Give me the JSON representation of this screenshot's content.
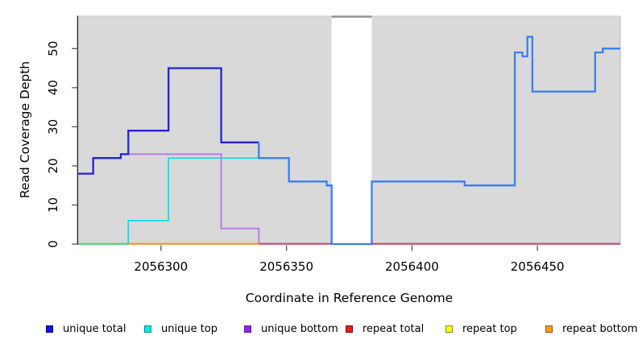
{
  "axes": {
    "x_title": "Coordinate in Reference Genome",
    "y_title": "Read Coverage Depth"
  },
  "legend": {
    "items": [
      {
        "label": "unique total",
        "color": "#1212ee",
        "border": "#00008b"
      },
      {
        "label": "unique top",
        "color": "#00eeee",
        "border": "#008b8b"
      },
      {
        "label": "unique bottom",
        "color": "#a020f0",
        "border": "#551a8b"
      },
      {
        "label": "repeat total",
        "color": "#ee1c1c",
        "border": "#8b0000"
      },
      {
        "label": "repeat top",
        "color": "#ffff00",
        "border": "#8b8b00"
      },
      {
        "label": "repeat bottom",
        "color": "#ffa012",
        "border": "#8b5a00"
      }
    ]
  },
  "chart_data": {
    "type": "step",
    "title": "",
    "xlabel": "Coordinate in Reference Genome",
    "ylabel": "Read Coverage Depth",
    "xlim": [
      2056267,
      2056483
    ],
    "ylim": [
      0,
      58.3
    ],
    "x_ticks": [
      2056300,
      2056350,
      2056400,
      2056450
    ],
    "y_ticks": [
      0,
      10,
      20,
      30,
      40,
      50
    ],
    "grid": false,
    "panel_bg": "#d9d9d9",
    "gap_region": {
      "start": 2056368,
      "end": 2056384,
      "fill": "#ffffff",
      "cap_color": "#96969a"
    },
    "series": [
      {
        "name": "unique total",
        "color": "#2424d6",
        "color_blend": "#3a7ef5",
        "steps": [
          [
            2056267,
            18
          ],
          [
            2056273,
            22
          ],
          [
            2056284,
            23
          ],
          [
            2056287,
            29
          ],
          [
            2056303,
            45
          ],
          [
            2056324,
            26
          ],
          [
            2056339,
            22
          ],
          [
            2056351,
            16
          ],
          [
            2056366,
            15
          ],
          [
            2056368,
            0
          ],
          [
            2056384,
            16
          ],
          [
            2056421,
            15
          ],
          [
            2056441,
            49
          ],
          [
            2056444,
            48
          ],
          [
            2056446,
            53
          ],
          [
            2056448,
            39
          ],
          [
            2056473,
            49
          ],
          [
            2056476,
            50
          ]
        ]
      },
      {
        "name": "unique top",
        "color": "#00e1ec",
        "steps": [
          [
            2056267,
            0
          ],
          [
            2056287,
            6
          ],
          [
            2056303,
            22
          ],
          [
            2056351,
            16
          ],
          [
            2056366,
            15
          ],
          [
            2056368,
            0
          ],
          [
            2056384,
            16
          ],
          [
            2056421,
            15
          ],
          [
            2056441,
            49
          ],
          [
            2056444,
            48
          ],
          [
            2056446,
            53
          ],
          [
            2056448,
            39
          ],
          [
            2056473,
            49
          ],
          [
            2056476,
            50
          ]
        ]
      },
      {
        "name": "unique bottom",
        "color": "#b57de8",
        "steps": [
          [
            2056267,
            18
          ],
          [
            2056273,
            22
          ],
          [
            2056284,
            23
          ],
          [
            2056324,
            4
          ],
          [
            2056339,
            0
          ]
        ]
      },
      {
        "name": "repeat total",
        "color": "#c04a6e",
        "steps": [
          [
            2056267,
            0
          ]
        ]
      },
      {
        "name": "repeat top",
        "color": "#ffff00",
        "steps": [
          [
            2056267,
            0
          ]
        ]
      },
      {
        "name": "repeat bottom",
        "color": "#ff8f1f",
        "steps": [
          [
            2056267,
            0
          ]
        ]
      }
    ],
    "baseline_segments": [
      {
        "from": 2056267,
        "to": 2056287,
        "color": "#76c47a"
      },
      {
        "from": 2056287,
        "to": 2056339,
        "color": "#ff8f1f"
      },
      {
        "from": 2056339,
        "to": 2056483,
        "color": "#c04a6e"
      }
    ]
  }
}
